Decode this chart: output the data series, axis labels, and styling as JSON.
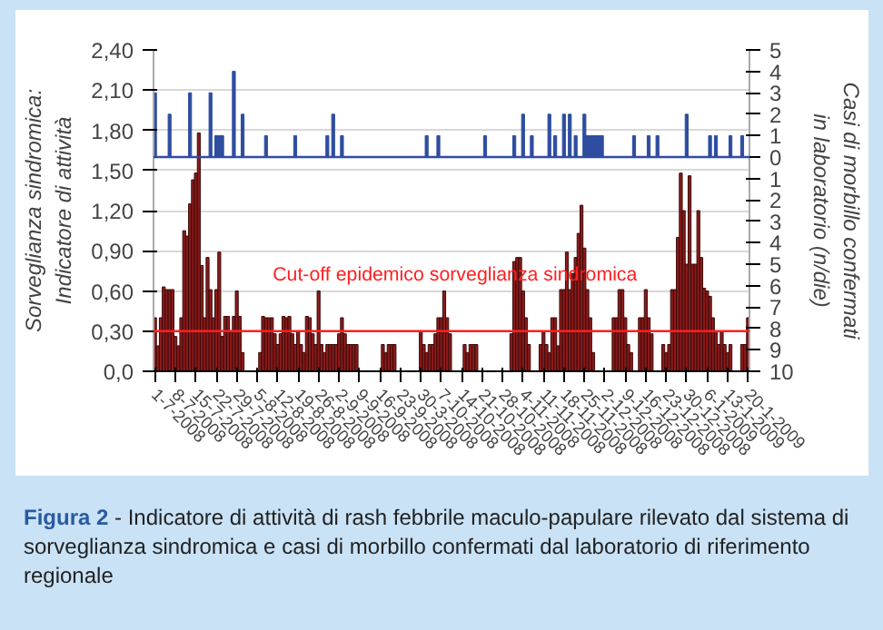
{
  "chart_data": {
    "type": "bar",
    "ylabel": "Sorveglianza sindromica: Indicatore di attività",
    "y2label": "Casi di morbillo confermati in laboratorio (n/die)",
    "annotations": [
      "Figura 2",
      "- Indicatore di attività di rash febbrile maculo-papulare rilevato dal sistema di sorveglianza sindromica e casi di morbillo confermati dal laboratorio di riferimento regionale"
    ],
    "categories": [
      "1-7-2008",
      null,
      null,
      null,
      null,
      null,
      null,
      "8-7-2008",
      null,
      null,
      null,
      null,
      null,
      null,
      "15-7-2008",
      null,
      null,
      null,
      null,
      null,
      null,
      "22-7-2008",
      null,
      null,
      null,
      null,
      null,
      null,
      "29-7-2008",
      null,
      null,
      null,
      null,
      null,
      null,
      "5-8-2008",
      null,
      null,
      null,
      null,
      null,
      null,
      "12-8-2008",
      null,
      null,
      null,
      null,
      null,
      null,
      "19-8-2008",
      null,
      null,
      null,
      null,
      null,
      null,
      "26-8-2008",
      null,
      null,
      null,
      null,
      null,
      null,
      "2-9-2008",
      null,
      null,
      null,
      null,
      null,
      null,
      "9-9-2008",
      null,
      null,
      null,
      null,
      null,
      null,
      "16-9-2008",
      null,
      null,
      null,
      null,
      null,
      null,
      "23-9-2008",
      null,
      null,
      null,
      null,
      null,
      null,
      "30-3-2008",
      null,
      null,
      null,
      null,
      null,
      null,
      "7-10-2008",
      null,
      null,
      null,
      null,
      null,
      null,
      "14-10-2008",
      null,
      null,
      null,
      null,
      null,
      null,
      "21-10-2008",
      null,
      null,
      null,
      null,
      null,
      null,
      "28-10-2008",
      null,
      null,
      null,
      null,
      null,
      null,
      "4-11-2008",
      null,
      null,
      null,
      null,
      null,
      null,
      "11-11-2008",
      null,
      null,
      null,
      null,
      null,
      null,
      "18-11-2008",
      null,
      null,
      null,
      null,
      null,
      null,
      "25-11-2008",
      null,
      null,
      null,
      null,
      null,
      null,
      "2-12-2008",
      null,
      null,
      null,
      null,
      null,
      null,
      "9-12-2008",
      null,
      null,
      null,
      null,
      null,
      null,
      "16-12-2008",
      null,
      null,
      null,
      null,
      null,
      null,
      "23-12-2008",
      null,
      null,
      null,
      null,
      null,
      null,
      "30-12-2008",
      null,
      null,
      null,
      null,
      null,
      null,
      "6-1-2009",
      null,
      null,
      null,
      null,
      null,
      null,
      "13-1-2009",
      null,
      null,
      null,
      null,
      null,
      null,
      "20-1-2009"
    ],
    "series": [
      {
        "color": "#8b1a1a",
        "values": [
          0.4,
          0.19,
          0.4,
          0.63,
          0.61,
          0.61,
          0.61,
          0.26,
          0.19,
          0.4,
          1.05,
          1.01,
          1.25,
          1.43,
          1.48,
          1.78,
          0.79,
          0.4,
          0.85,
          0.61,
          0.4,
          0.61,
          0.89,
          0.26,
          0.41,
          0.41,
          0.29,
          0.41,
          0.6,
          0.41,
          0.14,
          null,
          null,
          null,
          null,
          null,
          0.14,
          0.41,
          0.4,
          0.4,
          0.4,
          0.28,
          0.2,
          0.28,
          0.41,
          0.4,
          0.41,
          0.28,
          0.2,
          0.3,
          0.2,
          0.14,
          0.41,
          0.4,
          0.28,
          0.2,
          0.6,
          0.2,
          0.14,
          0.2,
          0.2,
          0.2,
          0.2,
          0.28,
          0.4,
          0.28,
          0.2,
          0.2,
          0.2,
          0.2,
          null,
          null,
          null,
          null,
          null,
          null,
          null,
          null,
          0.2,
          0.14,
          0.2,
          0.2,
          0.2,
          null,
          null,
          null,
          null,
          null,
          null,
          null,
          null,
          0.3,
          0.2,
          0.14,
          0.2,
          0.2,
          0.28,
          0.4,
          0.4,
          0.6,
          0.4,
          0.28,
          null,
          null,
          null,
          null,
          0.2,
          0.14,
          0.2,
          0.2,
          0.2,
          null,
          null,
          null,
          null,
          null,
          null,
          null,
          null,
          null,
          null,
          null,
          0.28,
          0.82,
          0.85,
          0.85,
          0.6,
          0.4,
          0.2,
          null,
          null,
          null,
          0.2,
          0.3,
          0.2,
          0.14,
          0.4,
          0.4,
          0.19,
          0.61,
          0.61,
          0.89,
          0.61,
          0.73,
          0.85,
          1.03,
          1.24,
          0.92,
          0.61,
          0.4,
          0.14,
          null,
          null,
          null,
          null,
          null,
          null,
          0.4,
          0.4,
          0.61,
          0.61,
          0.4,
          0.2,
          0.14,
          null,
          null,
          0.4,
          0.4,
          0.61,
          0.4,
          0.28,
          null,
          null,
          null,
          0.2,
          0.14,
          0.2,
          0.61,
          0.61,
          1.0,
          1.48,
          1.2,
          0.8,
          1.46,
          0.8,
          0.8,
          1.2,
          0.85,
          0.62,
          0.6,
          0.56,
          0.4,
          0.3,
          0.2,
          0.3,
          0.2,
          0.14,
          0.2,
          null,
          null,
          null,
          0.2,
          0.2,
          0.4
        ]
      },
      {
        "color": "#2e4da0",
        "axis": "y2",
        "values": [
          3,
          null,
          null,
          null,
          null,
          2,
          null,
          null,
          null,
          null,
          null,
          null,
          3,
          null,
          null,
          null,
          null,
          null,
          null,
          3,
          null,
          1,
          1,
          1,
          null,
          null,
          null,
          4,
          null,
          null,
          2,
          null,
          null,
          null,
          null,
          null,
          null,
          null,
          1,
          null,
          null,
          null,
          null,
          null,
          null,
          null,
          null,
          null,
          1,
          null,
          null,
          null,
          null,
          null,
          null,
          null,
          null,
          null,
          null,
          1,
          null,
          2,
          null,
          null,
          1,
          null,
          null,
          null,
          null,
          null,
          null,
          null,
          null,
          null,
          null,
          null,
          null,
          null,
          null,
          null,
          null,
          null,
          null,
          null,
          null,
          null,
          null,
          null,
          null,
          null,
          null,
          null,
          null,
          1,
          null,
          null,
          null,
          1,
          null,
          null,
          null,
          null,
          null,
          null,
          null,
          null,
          null,
          null,
          null,
          null,
          null,
          null,
          null,
          1,
          null,
          null,
          null,
          null,
          null,
          null,
          null,
          null,
          null,
          1,
          null,
          null,
          2,
          null,
          null,
          1,
          null,
          null,
          null,
          null,
          null,
          2,
          null,
          1,
          null,
          null,
          2,
          null,
          2,
          null,
          1,
          null,
          null,
          2,
          1,
          1,
          1,
          1,
          1,
          1,
          null,
          null,
          null,
          null,
          null,
          null,
          null,
          null,
          null,
          null,
          1,
          null,
          null,
          null,
          null,
          1,
          null,
          null,
          1,
          null,
          null,
          null,
          null,
          null,
          null,
          null,
          null,
          null,
          2,
          null,
          null,
          null,
          null,
          null,
          null,
          null,
          1,
          null,
          1,
          null,
          null,
          null,
          null,
          1,
          null,
          null,
          null,
          1,
          null,
          null
        ]
      }
    ],
    "ylim": [
      0,
      2.4
    ],
    "yticks": [
      {
        "value": 0,
        "label": "0,0"
      },
      {
        "value": 0.3,
        "label": "0,30"
      },
      {
        "value": 0.6,
        "label": "0,60"
      },
      {
        "value": 0.9,
        "label": "0,90"
      },
      {
        "value": 1.2,
        "label": "1,20"
      },
      {
        "value": 1.5,
        "label": "1,50"
      },
      {
        "value": 1.8,
        "label": "1,80"
      },
      {
        "value": 2.1,
        "label": "2,10"
      },
      {
        "value": 2.4,
        "label": "2,40"
      }
    ],
    "y2lim": [
      -10,
      5
    ],
    "y2ticks": [
      5,
      4,
      3,
      2,
      1,
      0,
      {
        "value": -1,
        "label": "1"
      },
      {
        "value": -2,
        "label": "2"
      },
      {
        "value": -3,
        "label": "3"
      },
      {
        "value": -4,
        "label": "4"
      },
      {
        "value": -5,
        "label": "5"
      },
      {
        "value": -6,
        "label": "6"
      },
      {
        "value": -7,
        "label": "7"
      },
      {
        "value": -8,
        "label": "8"
      },
      {
        "value": -9,
        "label": "9"
      },
      {
        "value": -10,
        "label": "10"
      }
    ],
    "ref_lines": [
      {
        "axis": "y",
        "value": 0.3,
        "label": "Cut-off epidemico sorveglianza sindromica",
        "color": "#ff2020"
      },
      {
        "axis": "y2",
        "value": 0,
        "color": "#2e4da0"
      }
    ],
    "grid": "y"
  }
}
